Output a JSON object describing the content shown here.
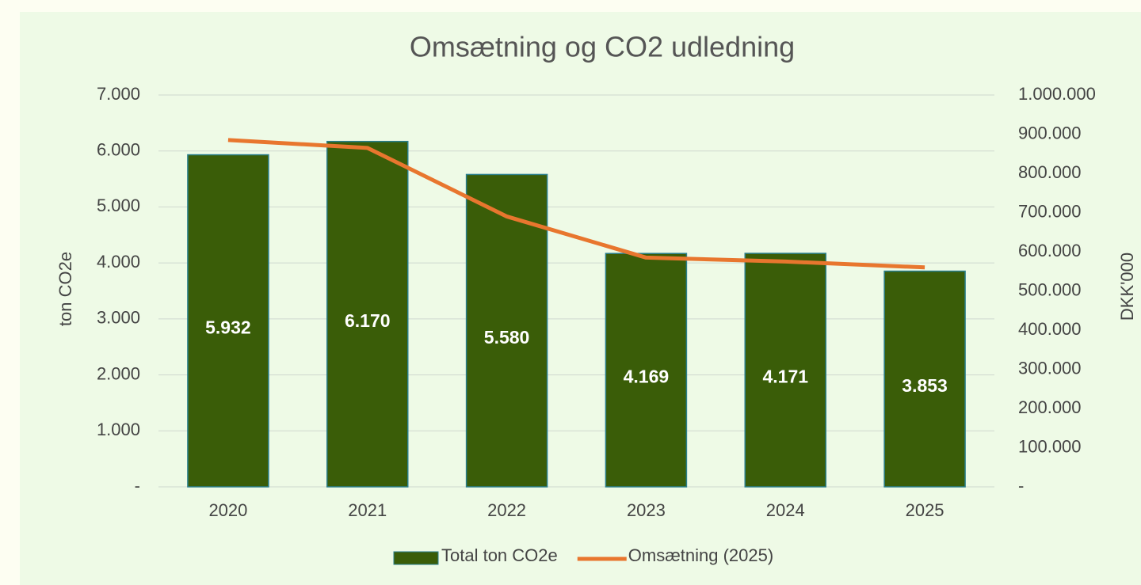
{
  "chart_data": {
    "type": "bar",
    "title": "Omsætning og CO2 udledning",
    "y_label": "ton CO2e",
    "y2_label": "DKK'000",
    "categories": [
      "2020",
      "2021",
      "2022",
      "2023",
      "2024",
      "2025"
    ],
    "series": [
      {
        "name": "Total ton CO2e",
        "type": "bar",
        "color": "#3a5d08",
        "values": [
          5932,
          6170,
          5580,
          4169,
          4171,
          3853
        ],
        "value_labels": [
          "5.932",
          "6.170",
          "5.580",
          "4.169",
          "4.171",
          "3.853"
        ]
      },
      {
        "name": "Omsætning (2025)",
        "type": "line",
        "axis": "y2",
        "color": "#e8762e",
        "values": [
          885000,
          865000,
          690000,
          585000,
          575000,
          560000
        ]
      }
    ],
    "ylim": [
      0,
      7000
    ],
    "yticks": [
      {
        "value": 0,
        "label": "-"
      },
      {
        "value": 1000,
        "label": "1.000"
      },
      {
        "value": 2000,
        "label": "2.000"
      },
      {
        "value": 3000,
        "label": "3.000"
      },
      {
        "value": 4000,
        "label": "4.000"
      },
      {
        "value": 5000,
        "label": "5.000"
      },
      {
        "value": 6000,
        "label": "6.000"
      },
      {
        "value": 7000,
        "label": "7.000"
      }
    ],
    "y2lim": [
      0,
      1000000
    ],
    "y2ticks": [
      {
        "value": 0,
        "label": "-"
      },
      {
        "value": 100000,
        "label": "100.000"
      },
      {
        "value": 200000,
        "label": "200.000"
      },
      {
        "value": 300000,
        "label": "300.000"
      },
      {
        "value": 400000,
        "label": "400.000"
      },
      {
        "value": 500000,
        "label": "500.000"
      },
      {
        "value": 600000,
        "label": "600.000"
      },
      {
        "value": 700000,
        "label": "700.000"
      },
      {
        "value": 800000,
        "label": "800.000"
      },
      {
        "value": 900000,
        "label": "900.000"
      },
      {
        "value": 1000000,
        "label": "1.000.000"
      }
    ],
    "grid": true,
    "legend": "bottom"
  }
}
